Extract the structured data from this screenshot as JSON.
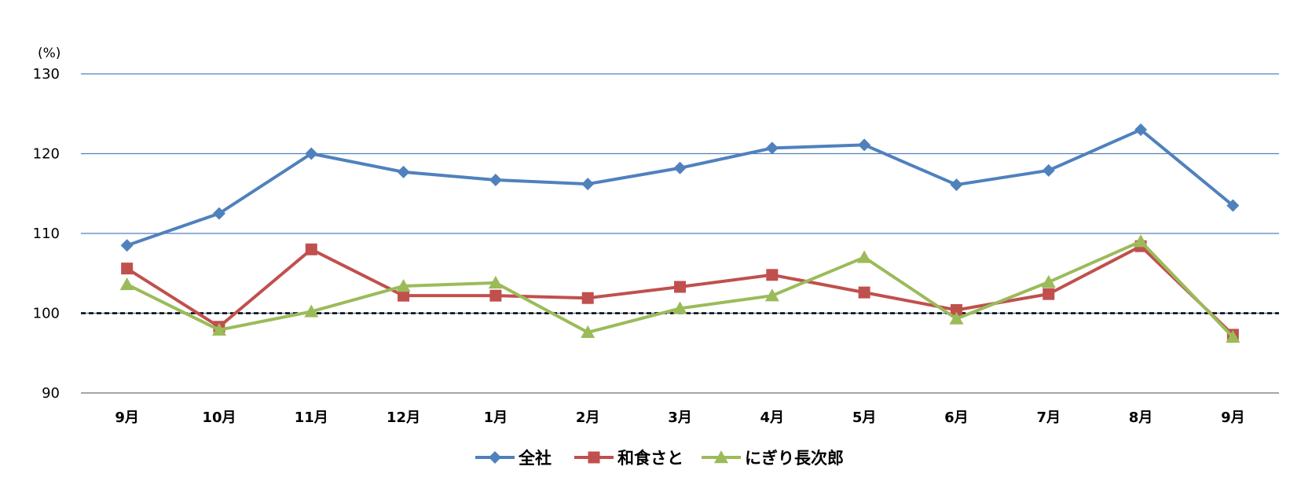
{
  "chart_data": {
    "type": "line",
    "unit_label": "(%)",
    "categories": [
      "9月",
      "10月",
      "11月",
      "12月",
      "1月",
      "2月",
      "3月",
      "4月",
      "5月",
      "6月",
      "7月",
      "8月",
      "9月"
    ],
    "ylim": [
      90,
      130
    ],
    "yticks": [
      90,
      100,
      110,
      120,
      130
    ],
    "reference_line": 100,
    "grid": true,
    "legend_position": "bottom",
    "series": [
      {
        "name": "全社",
        "color": "#4F81BD",
        "marker": "diamond",
        "values": [
          108.5,
          112.5,
          120.0,
          117.7,
          116.7,
          116.2,
          118.2,
          120.7,
          121.1,
          116.1,
          117.9,
          123.0,
          113.5
        ]
      },
      {
        "name": "和食さと",
        "color": "#C0504D",
        "marker": "square",
        "values": [
          105.6,
          98.3,
          108.0,
          102.2,
          102.2,
          101.9,
          103.3,
          104.8,
          102.6,
          100.4,
          102.4,
          108.4,
          97.3
        ]
      },
      {
        "name": "にぎり長次郎",
        "color": "#9BBB59",
        "marker": "triangle",
        "values": [
          103.6,
          97.9,
          100.2,
          103.4,
          103.8,
          97.6,
          100.6,
          102.2,
          107.0,
          99.3,
          103.9,
          109.0,
          97.0
        ]
      }
    ]
  }
}
